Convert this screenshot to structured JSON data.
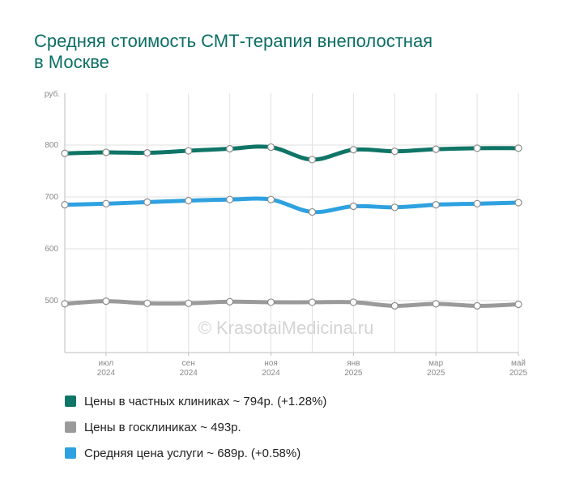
{
  "title_line1": "Средняя стоимость СМТ-терапия внеполостная",
  "title_line2": "в Москве",
  "watermark": "© KrasotaiMedicina.ru",
  "chart_data": {
    "type": "line",
    "ylabel": "руб.",
    "ylim": [
      400,
      900
    ],
    "yticks": [
      500,
      600,
      700,
      800
    ],
    "grid": true,
    "legend_position": "bottom",
    "x_labels": [
      {
        "index": 1,
        "month": "июл",
        "year": "2024"
      },
      {
        "index": 3,
        "month": "сен",
        "year": "2024"
      },
      {
        "index": 5,
        "month": "ноя",
        "year": "2024"
      },
      {
        "index": 7,
        "month": "янв",
        "year": "2025"
      },
      {
        "index": 9,
        "month": "мар",
        "year": "2025"
      },
      {
        "index": 11,
        "month": "май",
        "year": "2025"
      }
    ],
    "series": [
      {
        "name": "Цены в частных клиниках",
        "color": "#0f7566",
        "values": [
          784,
          786,
          785,
          789,
          793,
          796,
          772,
          791,
          788,
          792,
          794,
          794
        ],
        "legend": "Цены в частных клиниках ~ 794р. (+1.28%)"
      },
      {
        "name": "Цены в госклиниках",
        "color": "#9a9a9a",
        "values": [
          494,
          499,
          495,
          495,
          498,
          497,
          497,
          497,
          490,
          494,
          490,
          493
        ],
        "legend": "Цены в госклиниках ~ 493р."
      },
      {
        "name": "Средняя цена услуги",
        "color": "#2ea1e0",
        "values": [
          685,
          687,
          690,
          693,
          695,
          695,
          671,
          682,
          680,
          685,
          687,
          689
        ],
        "legend": "Средняя цена услуги ~ 689р. (+0.58%)"
      }
    ]
  }
}
